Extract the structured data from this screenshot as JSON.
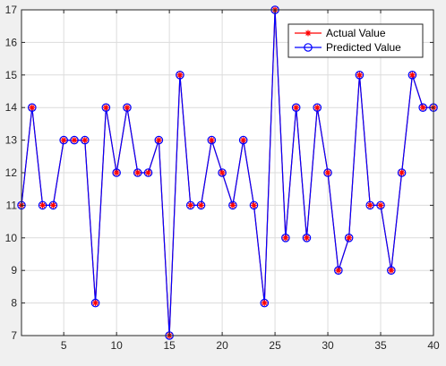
{
  "chart_data": {
    "type": "line",
    "xlim": [
      1,
      40
    ],
    "ylim": [
      7,
      17
    ],
    "x_ticks": [
      5,
      10,
      15,
      20,
      25,
      30,
      35,
      40
    ],
    "y_ticks": [
      7,
      8,
      9,
      10,
      11,
      12,
      13,
      14,
      15,
      16,
      17
    ],
    "grid": true,
    "legend_position": "top-right",
    "x": [
      1,
      2,
      3,
      4,
      5,
      6,
      7,
      8,
      9,
      10,
      11,
      12,
      13,
      14,
      15,
      16,
      17,
      18,
      19,
      20,
      21,
      22,
      23,
      24,
      25,
      26,
      27,
      28,
      29,
      30,
      31,
      32,
      33,
      34,
      35,
      36,
      37,
      38,
      39,
      40
    ],
    "series": [
      {
        "name": "Actual Value",
        "color": "#ff0000",
        "marker": "asterisk",
        "values": [
          11,
          14,
          11,
          11,
          13,
          13,
          13,
          8,
          14,
          12,
          14,
          12,
          12,
          13,
          7,
          15,
          11,
          11,
          13,
          12,
          11,
          13,
          11,
          8,
          17,
          10,
          14,
          10,
          14,
          12,
          9,
          10,
          15,
          11,
          11,
          9,
          12,
          15,
          14,
          14
        ]
      },
      {
        "name": "Predicted Value",
        "color": "#0000ff",
        "marker": "circle",
        "values": [
          11,
          14,
          11,
          11,
          13,
          13,
          13,
          8,
          14,
          12,
          14,
          12,
          12,
          13,
          7,
          15,
          11,
          11,
          13,
          12,
          11,
          13,
          11,
          8,
          17,
          10,
          14,
          10,
          14,
          12,
          9,
          10,
          15,
          11,
          11,
          9,
          12,
          15,
          14,
          14
        ]
      }
    ]
  }
}
